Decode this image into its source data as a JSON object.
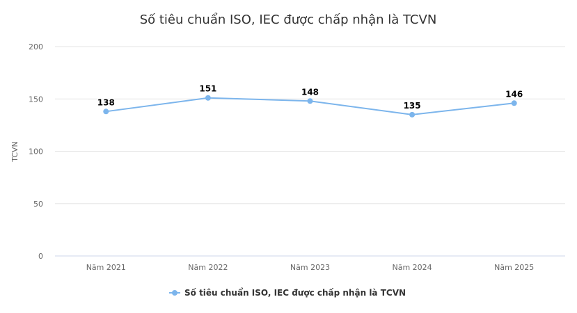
{
  "chart_data": {
    "type": "line",
    "title": "Số tiêu chuẩn ISO, IEC được chấp nhận là TCVN",
    "xlabel": "",
    "ylabel": "TCVN",
    "categories": [
      "Năm 2021",
      "Năm 2022",
      "Năm 2023",
      "Năm 2024",
      "Năm 2025"
    ],
    "series": [
      {
        "name": "Số tiêu chuẩn ISO, IEC được chấp nhận là TCVN",
        "values": [
          138,
          151,
          148,
          135,
          146
        ],
        "color": "#7cb5ec"
      }
    ],
    "ylim": [
      0,
      200
    ],
    "yticks": [
      0,
      50,
      100,
      150,
      200
    ],
    "grid": true,
    "data_labels": true,
    "legend": "bottom-center"
  }
}
